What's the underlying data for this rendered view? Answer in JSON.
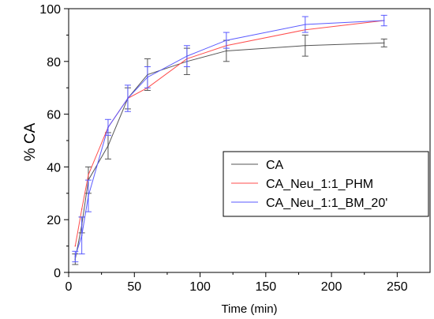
{
  "chart_data": {
    "type": "line",
    "xlabel": "Time (min)",
    "ylabel": "% CA",
    "xlim": [
      0,
      275
    ],
    "ylim": [
      0,
      100
    ],
    "x_ticks": [
      0,
      50,
      100,
      150,
      200,
      250
    ],
    "y_ticks": [
      0,
      20,
      40,
      60,
      80,
      100
    ],
    "x_tick_labels": [
      "0",
      "50",
      "100",
      "150",
      "200",
      "250"
    ],
    "y_tick_labels": [
      "0",
      "20",
      "40",
      "60",
      "80",
      "100"
    ],
    "legend_position": "center-right",
    "series": [
      {
        "name": "CA",
        "color": "#555555",
        "x": [
          5,
          10,
          15,
          30,
          45,
          60,
          90,
          120,
          180,
          240
        ],
        "y": [
          5,
          18,
          35,
          48,
          66,
          75,
          80,
          84,
          86,
          87
        ],
        "err": [
          2,
          3,
          5,
          5,
          4,
          6,
          5,
          4,
          4,
          1.5
        ]
      },
      {
        "name": "CA_Neu_1:1_PHM",
        "color": "#ff4d4d",
        "x": [
          5,
          10,
          15,
          30,
          45,
          60,
          90,
          120,
          180,
          240
        ],
        "y": [
          10,
          24,
          37,
          55,
          66,
          70,
          81,
          86,
          92,
          95.5
        ]
      },
      {
        "name": "CA_Neu_1:1_BM_20'",
        "color": "#5a5aff",
        "x": [
          5,
          10,
          15,
          30,
          45,
          60,
          90,
          120,
          180,
          240
        ],
        "y": [
          6,
          14,
          29,
          55,
          66,
          74,
          82,
          88,
          94,
          95.5
        ],
        "err": [
          2,
          7,
          6,
          3,
          5,
          4,
          4,
          3,
          3,
          2
        ]
      }
    ]
  }
}
